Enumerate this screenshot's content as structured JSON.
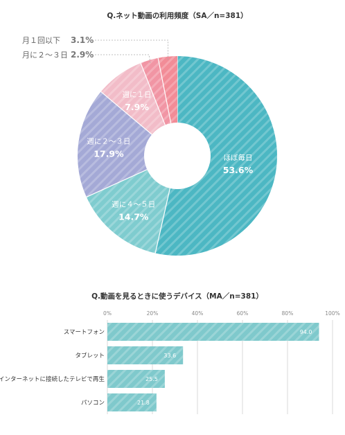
{
  "chart_data": [
    {
      "type": "pie",
      "title": "Q.ネット動画の利用頻度（SA／n=381）",
      "slices": [
        {
          "label": "ほぼ毎日",
          "value_label": "53.6%",
          "value": 53.6,
          "color": "#4cb7c3"
        },
        {
          "label": "週に４～５日",
          "value_label": "14.7%",
          "value": 14.7,
          "color": "#7fcccf"
        },
        {
          "label": "週に２～３日",
          "value_label": "17.9%",
          "value": 17.9,
          "color": "#a4a9d6"
        },
        {
          "label": "週に１日",
          "value_label": "7.9%",
          "value": 7.9,
          "color": "#f2bcc8"
        },
        {
          "label": "月に２～３日",
          "value_label": "2.9%",
          "value": 2.9,
          "color": "#f195a4"
        },
        {
          "label": "月１回以下",
          "value_label": "3.1%",
          "value": 3.1,
          "color": "#f28c97"
        }
      ]
    },
    {
      "type": "bar",
      "title": "Q.動画を見るときに使うデバイス（MA／n=381）",
      "categories": [
        "スマートフォン",
        "タブレット",
        "インターネットに接続したテレビで再生",
        "パソコン"
      ],
      "values": [
        94.0,
        33.6,
        25.5,
        21.8
      ],
      "value_labels": [
        "94.0",
        "33.6",
        "25.5",
        "21.8"
      ],
      "ticks": [
        "0%",
        "20%",
        "40%",
        "60%",
        "80%",
        "100%"
      ],
      "xlim": [
        0,
        100
      ],
      "orientation": "horizontal",
      "color": "#7fc9cc"
    }
  ]
}
